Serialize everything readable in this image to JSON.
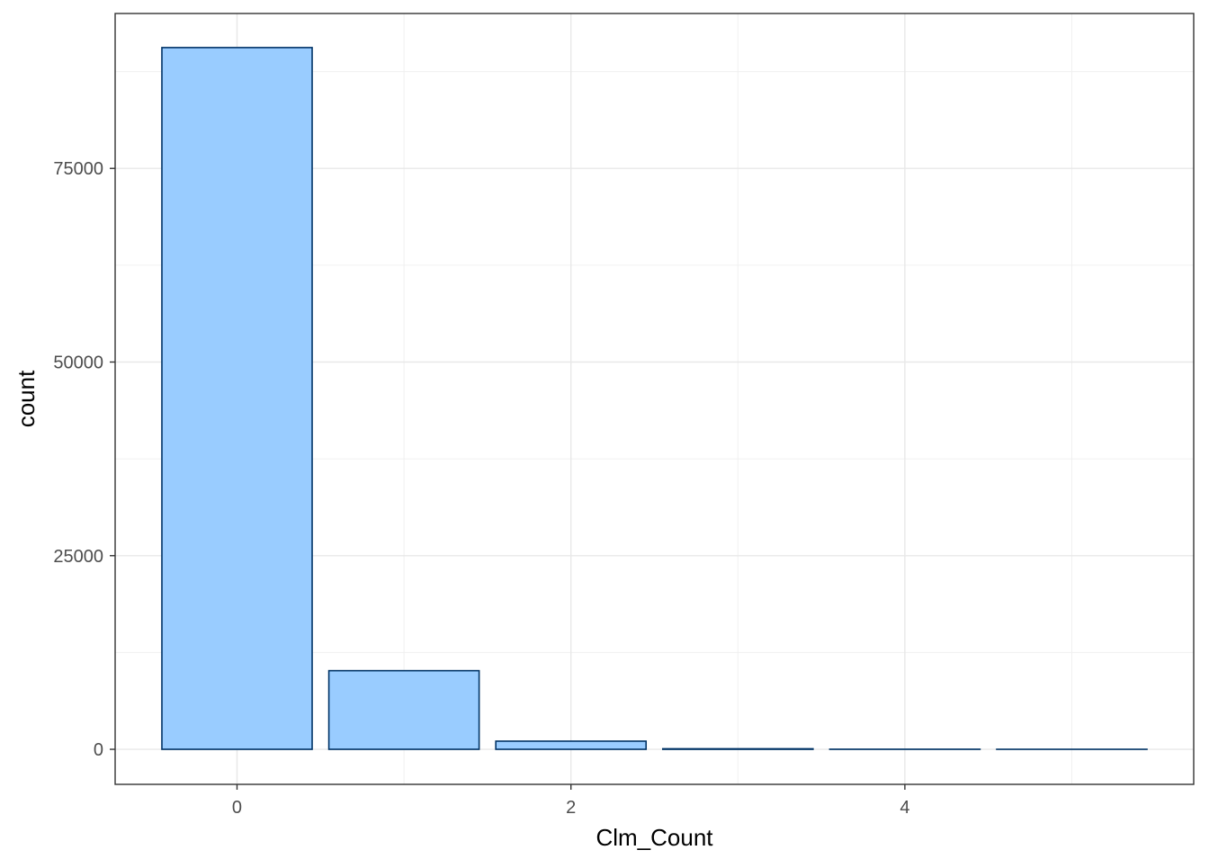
{
  "chart_data": {
    "type": "bar",
    "xlabel": "Clm_Count",
    "ylabel": "count",
    "x": [
      0,
      1,
      2,
      3,
      4,
      5
    ],
    "values": [
      90600,
      10150,
      1050,
      70,
      8,
      1
    ],
    "xlim": [
      -0.73,
      5.73
    ],
    "ylim": [
      -4525,
      95000
    ],
    "x_ticks": [
      0,
      2,
      4
    ],
    "x_tick_labels": [
      "0",
      "2",
      "4"
    ],
    "y_ticks": [
      0,
      25000,
      50000,
      75000
    ],
    "y_tick_labels": [
      "0",
      "25000",
      "50000",
      "75000"
    ],
    "bar_fill": "#99CCFF",
    "bar_outline": "#003366",
    "grid": true,
    "theme": "bw"
  }
}
